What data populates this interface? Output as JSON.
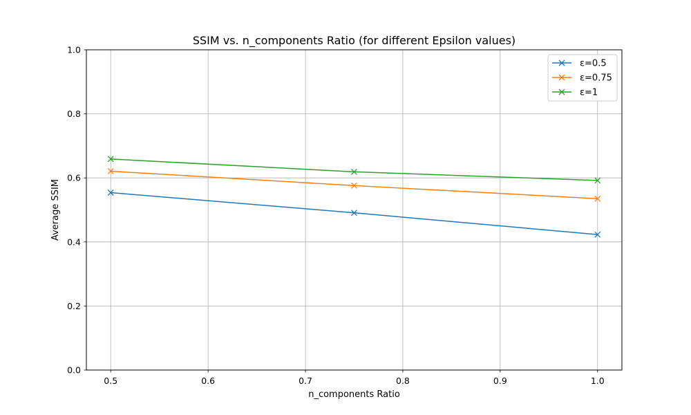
{
  "chart_data": {
    "type": "line",
    "title": "SSIM vs. n_components Ratio (for different Epsilon values)",
    "xlabel": "n_components Ratio",
    "ylabel": "Average SSIM",
    "x": [
      0.5,
      0.75,
      1.0
    ],
    "xlim": [
      0.475,
      1.025
    ],
    "ylim": [
      0,
      1
    ],
    "xticks": [
      0.5,
      0.6,
      0.7,
      0.8,
      0.9,
      1.0
    ],
    "xtick_labels": [
      "0.5",
      "0.6",
      "0.7",
      "0.8",
      "0.9",
      "1.0"
    ],
    "yticks": [
      0,
      0.2,
      0.4,
      0.6,
      0.8,
      1.0
    ],
    "ytick_labels": [
      "0.0",
      "0.2",
      "0.4",
      "0.6",
      "0.8",
      "1.0"
    ],
    "grid": true,
    "legend_position": "top-right",
    "marker": "x",
    "series": [
      {
        "name": "ε=0.5",
        "values": [
          0.554,
          0.491,
          0.423
        ],
        "color": "#1f77b4"
      },
      {
        "name": "ε=0.75",
        "values": [
          0.621,
          0.576,
          0.535
        ],
        "color": "#ff7f0e"
      },
      {
        "name": "ε=1",
        "values": [
          0.659,
          0.619,
          0.592
        ],
        "color": "#2ca02c"
      }
    ]
  }
}
